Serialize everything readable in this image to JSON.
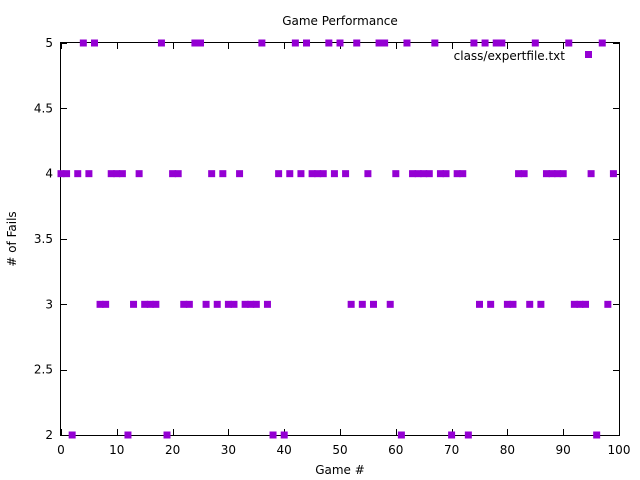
{
  "chart_data": {
    "type": "scatter",
    "title": "Game Performance",
    "xlabel": "Game #",
    "ylabel": "# of Fails",
    "xlim": [
      0,
      100
    ],
    "ylim": [
      2,
      5
    ],
    "xticks": [
      0,
      10,
      20,
      30,
      40,
      50,
      60,
      70,
      80,
      90,
      100
    ],
    "yticks": [
      2,
      2.5,
      3,
      3.5,
      4,
      4.5,
      5
    ],
    "xtick_labels": [
      "0",
      "10",
      "20",
      "30",
      "40",
      "50",
      "60",
      "70",
      "80",
      "90",
      "100"
    ],
    "ytick_labels": [
      "2",
      "2.5",
      "3",
      "3.5",
      "4",
      "4.5",
      "5"
    ],
    "grid": false,
    "legend_position": "top-right",
    "series": [
      {
        "name": "class/expertfile.txt",
        "color": "#9400d3",
        "marker": "square",
        "x": [
          0,
          1,
          2,
          3,
          4,
          5,
          6,
          7,
          8,
          9,
          10,
          11,
          12,
          13,
          14,
          15,
          16,
          17,
          18,
          19,
          20,
          21,
          22,
          23,
          24,
          25,
          26,
          27,
          28,
          29,
          30,
          31,
          32,
          33,
          34,
          35,
          36,
          37,
          38,
          39,
          40,
          41,
          42,
          43,
          44,
          45,
          46,
          47,
          48,
          49,
          50,
          51,
          52,
          53,
          54,
          55,
          56,
          57,
          58,
          59,
          60,
          61,
          62,
          63,
          64,
          65,
          66,
          67,
          68,
          69,
          70,
          71,
          72,
          73,
          74,
          75,
          76,
          77,
          78,
          79,
          80,
          81,
          82,
          83,
          84,
          85,
          86,
          87,
          88,
          89,
          90,
          91,
          92,
          93,
          94,
          95,
          96,
          97,
          98,
          99
        ],
        "y": [
          4,
          4,
          2,
          4,
          5,
          4,
          5,
          3,
          3,
          4,
          4,
          4,
          2,
          3,
          4,
          3,
          3,
          3,
          5,
          2,
          4,
          4,
          3,
          3,
          5,
          5,
          3,
          4,
          3,
          4,
          3,
          3,
          4,
          3,
          3,
          3,
          5,
          3,
          2,
          4,
          2,
          4,
          5,
          4,
          5,
          4,
          4,
          4,
          5,
          4,
          5,
          4,
          3,
          5,
          3,
          4,
          3,
          5,
          5,
          3,
          4,
          2,
          5,
          4,
          4,
          4,
          4,
          5,
          4,
          4,
          2,
          4,
          4,
          2,
          5,
          3,
          5,
          3,
          5,
          5,
          3,
          3,
          4,
          4,
          3,
          5,
          3,
          4,
          4,
          4,
          4,
          5,
          3,
          3,
          3,
          4,
          2,
          5,
          3,
          4
        ]
      }
    ]
  }
}
